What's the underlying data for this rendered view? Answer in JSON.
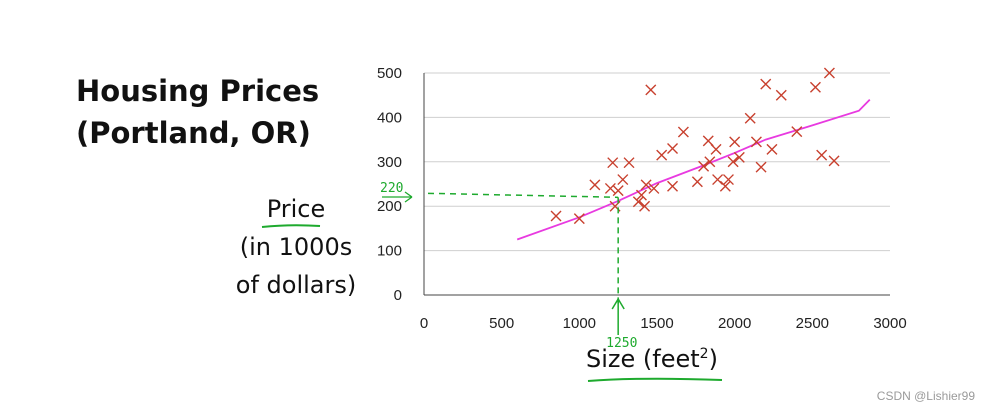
{
  "chart_data": {
    "type": "scatter",
    "title_lines": [
      "Housing Prices",
      "(Portland, OR)"
    ],
    "ylabel_lines": [
      "Price",
      "(in 1000s",
      "of dollars)"
    ],
    "xlabel": "Size (feet",
    "xlabel_sup": "2",
    "xlabel_close": ")",
    "xlim": [
      0,
      3000
    ],
    "ylim": [
      0,
      500
    ],
    "xticks": [
      0,
      500,
      1000,
      1500,
      2000,
      2500,
      3000
    ],
    "yticks": [
      0,
      100,
      200,
      300,
      400,
      500
    ],
    "grid": "horizontal",
    "marker": "x",
    "marker_color": "#c8402e",
    "fit_color": "#e83ae0",
    "annotation_color": "#1eaa2e",
    "points": [
      {
        "x": 850,
        "y": 178
      },
      {
        "x": 1000,
        "y": 172
      },
      {
        "x": 1100,
        "y": 248
      },
      {
        "x": 1200,
        "y": 240
      },
      {
        "x": 1215,
        "y": 298
      },
      {
        "x": 1230,
        "y": 200
      },
      {
        "x": 1250,
        "y": 235
      },
      {
        "x": 1280,
        "y": 260
      },
      {
        "x": 1320,
        "y": 298
      },
      {
        "x": 1380,
        "y": 210
      },
      {
        "x": 1400,
        "y": 225
      },
      {
        "x": 1420,
        "y": 200
      },
      {
        "x": 1430,
        "y": 248
      },
      {
        "x": 1460,
        "y": 462
      },
      {
        "x": 1480,
        "y": 240
      },
      {
        "x": 1530,
        "y": 315
      },
      {
        "x": 1600,
        "y": 330
      },
      {
        "x": 1600,
        "y": 245
      },
      {
        "x": 1670,
        "y": 367
      },
      {
        "x": 1760,
        "y": 255
      },
      {
        "x": 1800,
        "y": 290
      },
      {
        "x": 1830,
        "y": 347
      },
      {
        "x": 1840,
        "y": 300
      },
      {
        "x": 1880,
        "y": 328
      },
      {
        "x": 1890,
        "y": 260
      },
      {
        "x": 1940,
        "y": 245
      },
      {
        "x": 1960,
        "y": 260
      },
      {
        "x": 1990,
        "y": 300
      },
      {
        "x": 2000,
        "y": 345
      },
      {
        "x": 2030,
        "y": 310
      },
      {
        "x": 2100,
        "y": 398
      },
      {
        "x": 2140,
        "y": 345
      },
      {
        "x": 2170,
        "y": 288
      },
      {
        "x": 2200,
        "y": 475
      },
      {
        "x": 2240,
        "y": 328
      },
      {
        "x": 2300,
        "y": 450
      },
      {
        "x": 2400,
        "y": 368
      },
      {
        "x": 2520,
        "y": 468
      },
      {
        "x": 2560,
        "y": 315
      },
      {
        "x": 2610,
        "y": 500
      },
      {
        "x": 2640,
        "y": 302
      }
    ],
    "fit_line": [
      {
        "x": 600,
        "y": 125
      },
      {
        "x": 1000,
        "y": 175
      },
      {
        "x": 1250,
        "y": 212
      },
      {
        "x": 1500,
        "y": 252
      },
      {
        "x": 1800,
        "y": 292
      },
      {
        "x": 2000,
        "y": 320
      },
      {
        "x": 2200,
        "y": 350
      },
      {
        "x": 2500,
        "y": 382
      },
      {
        "x": 2800,
        "y": 415
      },
      {
        "x": 2870,
        "y": 440
      }
    ],
    "annotation": {
      "x": 1250,
      "y": 220,
      "x_label": "1250",
      "y_label": "220"
    }
  },
  "watermark": "CSDN @Lishier99"
}
